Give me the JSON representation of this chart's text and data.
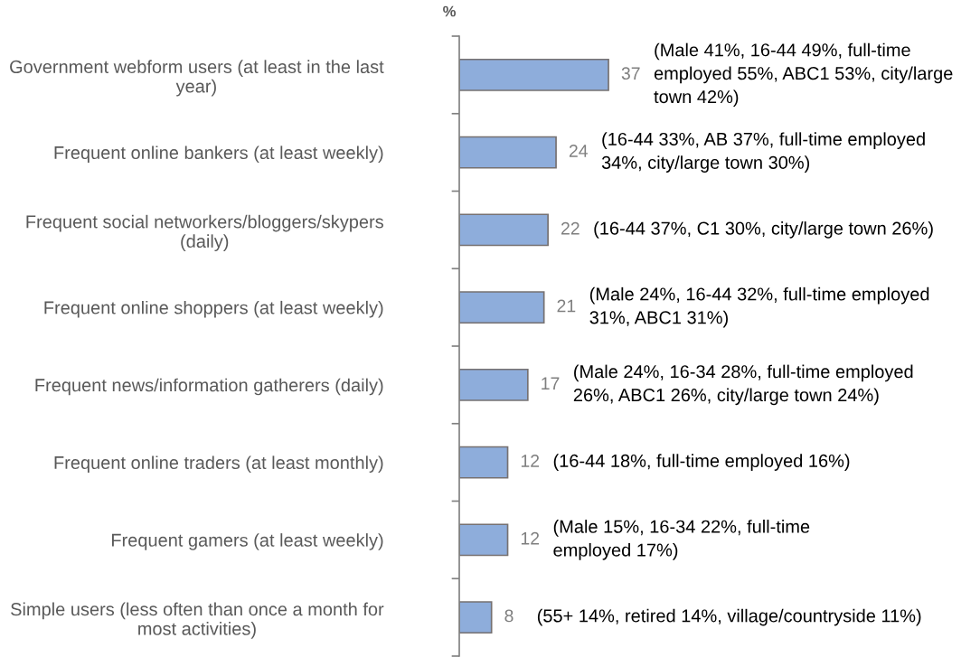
{
  "chart_data": {
    "type": "bar",
    "orientation": "horizontal",
    "xlabel": "%",
    "tick_labels": "y",
    "data_labels": true,
    "color": "#8eaddb",
    "categories": [
      "Government webform users (at least in the last\nyear)",
      "Frequent online bankers (at least weekly)",
      "Frequent social networkers/bloggers/skypers\n(daily)",
      "Frequent online shoppers (at least weekly)",
      "Frequent news/information gatherers (daily)",
      "Frequent online traders (at least monthly)",
      "Frequent gamers (at least weekly)",
      "Simple users (less often than once a month for\nmost activities)"
    ],
    "values": [
      37,
      24,
      22,
      21,
      17,
      12,
      12,
      8
    ],
    "annotations": [
      "(Male 41%, 16-44 49%, full-time\nemployed 55%, ABC1 53%, city/large\ntown 42%)",
      "(16-44 33%, AB 37%, full-time employed\n34%, city/large town 30%)",
      "(16-44 37%, C1 30%, city/large town 26%)",
      "(Male 24%, 16-44 32%, full-time employed\n31%, ABC1 31%)",
      "(Male 24%, 16-34 28%, full-time employed\n26%, ABC1 26%, city/large town 24%)",
      "(16-44 18%, full-time employed 16%)",
      "(Male 15%, 16-34 22%, full-time\nemployed 17%)",
      "(55+ 14%, retired 14%, village/countryside 11%)"
    ]
  }
}
